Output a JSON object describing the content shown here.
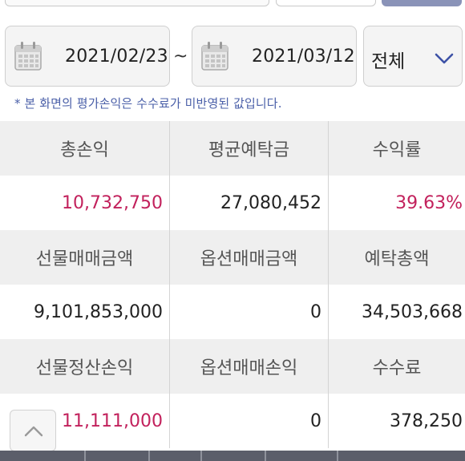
{
  "filter": {
    "start_date": "2021/02/23",
    "separator": "~",
    "end_date": "2021/03/12",
    "category": "전체"
  },
  "notice": "* 본 화면의 평가손익은 수수료가 미반영된 값입니다.",
  "summary": {
    "header_row_1": [
      "총손익",
      "평균예탁금",
      "수익률"
    ],
    "value_row_1": [
      "10,732,750",
      "27,080,452",
      "39.63%"
    ],
    "header_row_2": [
      "선물매매금액",
      "옵션매매금액",
      "예탁총액"
    ],
    "value_row_2": [
      "9,101,853,000",
      "0",
      "34,503,668"
    ],
    "header_row_3": [
      "선물정산손익",
      "옵션매매손익",
      "수수료"
    ],
    "value_row_3": [
      "11,111,000",
      "0",
      "378,250"
    ]
  },
  "colors": {
    "positive": "#c2215c",
    "notice": "#4a5fa8",
    "header_bg": "#efefef",
    "select_chevron": "#3d52a6"
  },
  "icons": {
    "calendar": "calendar-icon",
    "dropdown": "chevron-down-icon",
    "scroll_top": "chevron-up-icon"
  }
}
